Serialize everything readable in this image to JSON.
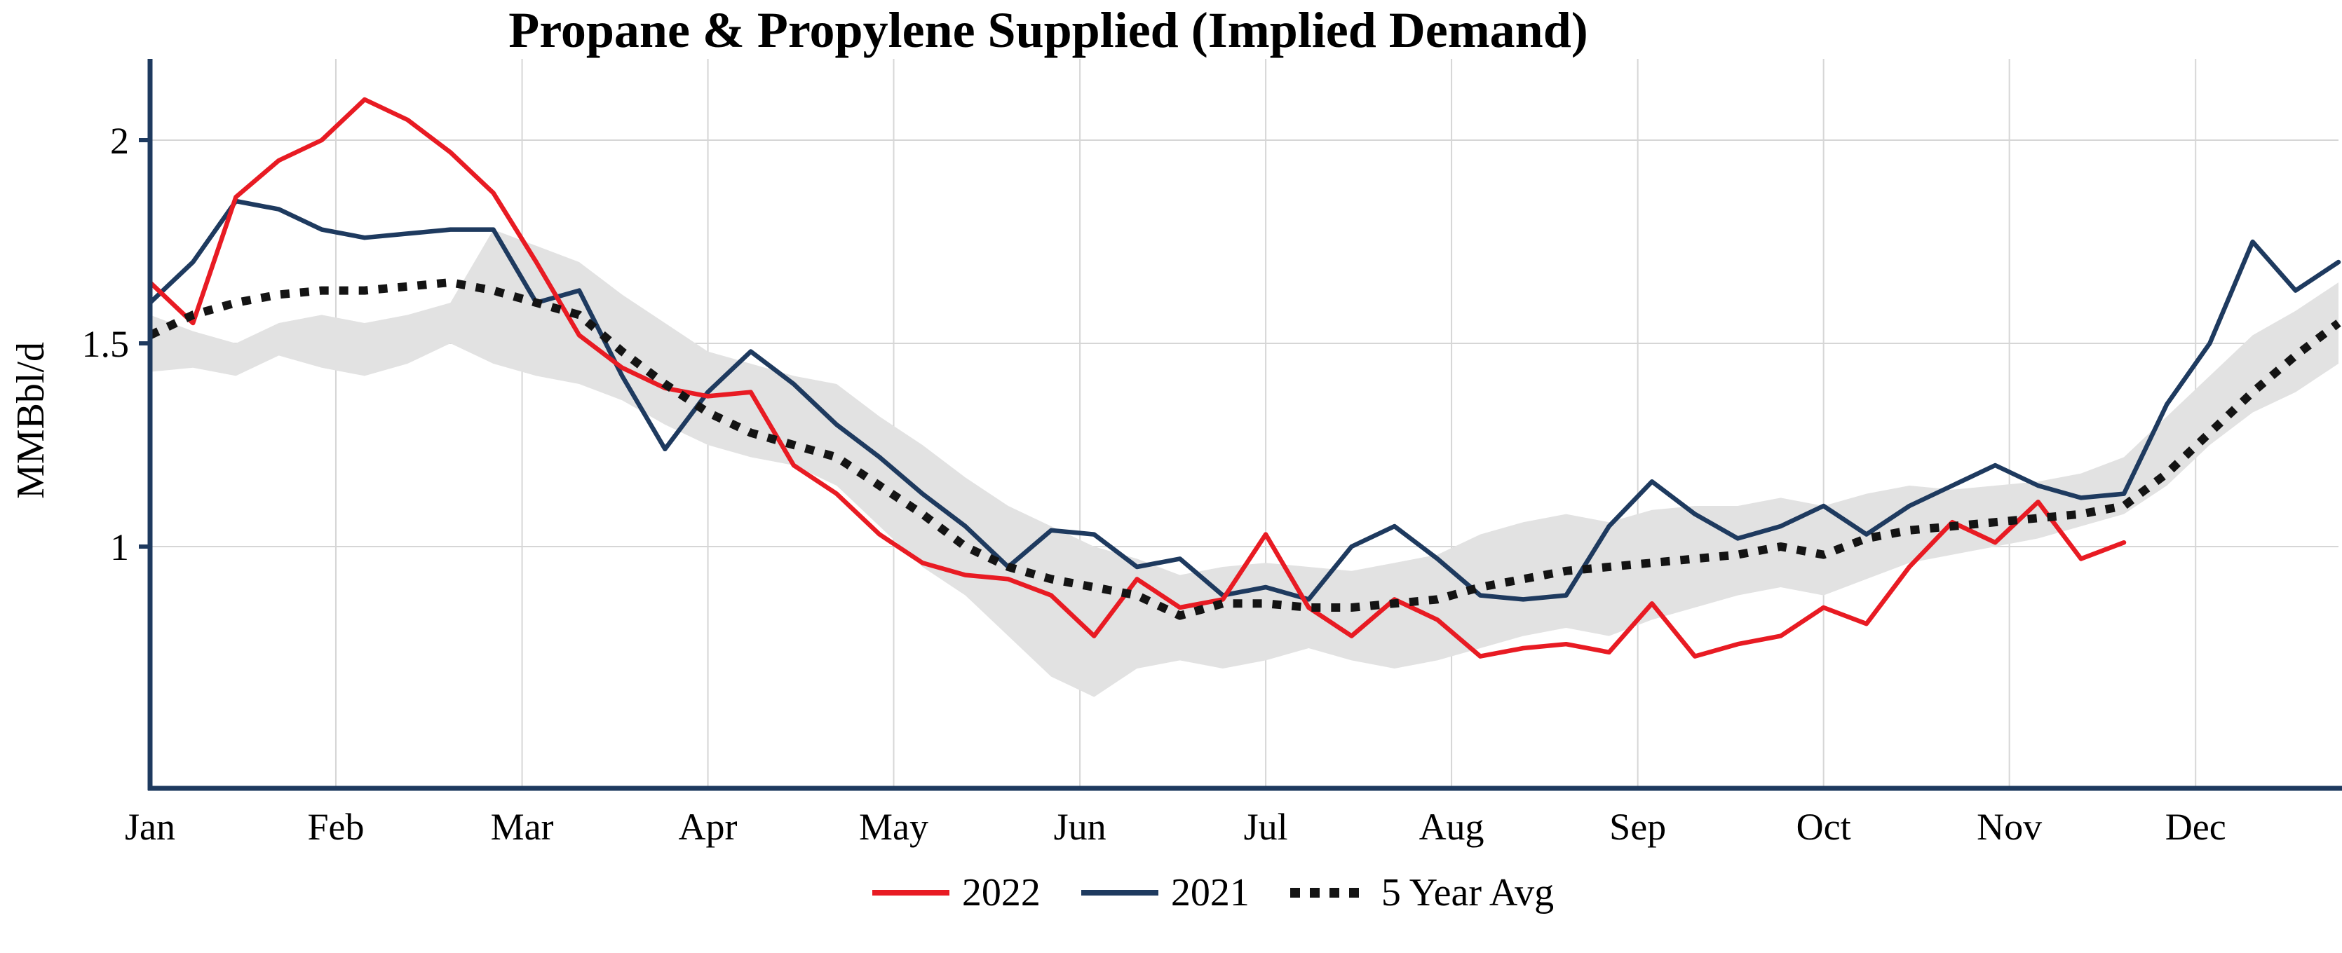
{
  "title": "Propane & Propylene Supplied (Implied Demand)",
  "colors": {
    "axis": "#1e3a5f",
    "grid": "#d6d6d6",
    "band": "#e2e2e2",
    "series_2022": "#e81b23",
    "series_2021": "#1e3a5f",
    "series_avg": "#141414",
    "text": "#000000"
  },
  "chart_data": {
    "type": "line",
    "title": "Propane & Propylene Supplied (Implied Demand)",
    "xlabel": "",
    "ylabel": "MMBbl/d",
    "x_unit": "week of year (Jan–Dec)",
    "months": [
      "Jan",
      "Feb",
      "Mar",
      "Apr",
      "May",
      "Jun",
      "Jul",
      "Aug",
      "Sep",
      "Oct",
      "Nov",
      "Dec"
    ],
    "month_week_positions": [
      0,
      4.33,
      8.67,
      13,
      17.33,
      21.67,
      26,
      30.33,
      34.67,
      39,
      43.33,
      47.67
    ],
    "yticks": [
      1,
      1.5,
      2
    ],
    "ytick_labels": [
      "1",
      "1.5",
      "2"
    ],
    "ylim": [
      0.4,
      2.2
    ],
    "grid": true,
    "legend_position": "bottom-center",
    "series": [
      {
        "name": "2022",
        "style": "solid",
        "color": "#e81b23",
        "start_week": 0,
        "values": [
          1.65,
          1.55,
          1.86,
          1.95,
          2.0,
          2.1,
          2.05,
          1.97,
          1.87,
          1.7,
          1.52,
          1.44,
          1.39,
          1.37,
          1.38,
          1.2,
          1.13,
          1.03,
          0.96,
          0.93,
          0.92,
          0.88,
          0.78,
          0.92,
          0.85,
          0.87,
          1.03,
          0.85,
          0.78,
          0.87,
          0.82,
          0.73,
          0.75,
          0.76,
          0.74,
          0.86,
          0.73,
          0.76,
          0.78,
          0.85,
          0.81,
          0.95,
          1.06,
          1.01,
          1.11,
          0.97,
          1.01
        ]
      },
      {
        "name": "2021",
        "style": "solid",
        "color": "#1e3a5f",
        "start_week": 0,
        "values": [
          1.6,
          1.7,
          1.85,
          1.83,
          1.78,
          1.76,
          1.77,
          1.78,
          1.78,
          1.6,
          1.63,
          1.42,
          1.24,
          1.38,
          1.48,
          1.4,
          1.3,
          1.22,
          1.13,
          1.05,
          0.95,
          1.04,
          1.03,
          0.95,
          0.97,
          0.88,
          0.9,
          0.87,
          1.0,
          1.05,
          0.97,
          0.88,
          0.87,
          0.88,
          1.05,
          1.16,
          1.08,
          1.02,
          1.05,
          1.1,
          1.03,
          1.1,
          1.15,
          1.2,
          1.15,
          1.12,
          1.13,
          1.35,
          1.5,
          1.75,
          1.63,
          1.7
        ]
      },
      {
        "name": "5 Year Avg",
        "style": "dotted",
        "color": "#141414",
        "start_week": 0,
        "values": [
          1.52,
          1.57,
          1.6,
          1.62,
          1.63,
          1.63,
          1.64,
          1.65,
          1.63,
          1.6,
          1.57,
          1.48,
          1.4,
          1.33,
          1.28,
          1.25,
          1.22,
          1.15,
          1.08,
          1.0,
          0.95,
          0.92,
          0.9,
          0.88,
          0.83,
          0.86,
          0.86,
          0.85,
          0.85,
          0.86,
          0.87,
          0.9,
          0.92,
          0.94,
          0.95,
          0.96,
          0.97,
          0.98,
          1.0,
          0.98,
          1.02,
          1.04,
          1.05,
          1.06,
          1.07,
          1.08,
          1.1,
          1.18,
          1.28,
          1.38,
          1.47,
          1.55
        ]
      }
    ],
    "band": {
      "name": "5 Year Range",
      "color": "#e2e2e2",
      "start_week": 0,
      "upper": [
        1.57,
        1.53,
        1.5,
        1.55,
        1.57,
        1.55,
        1.57,
        1.6,
        1.78,
        1.74,
        1.7,
        1.62,
        1.55,
        1.48,
        1.45,
        1.42,
        1.4,
        1.32,
        1.25,
        1.17,
        1.1,
        1.05,
        1.0,
        0.97,
        0.93,
        0.95,
        0.96,
        0.95,
        0.94,
        0.96,
        0.98,
        1.03,
        1.06,
        1.08,
        1.06,
        1.09,
        1.1,
        1.1,
        1.12,
        1.1,
        1.13,
        1.15,
        1.14,
        1.15,
        1.16,
        1.18,
        1.22,
        1.32,
        1.42,
        1.52,
        1.58,
        1.65
      ],
      "lower": [
        1.43,
        1.44,
        1.42,
        1.47,
        1.44,
        1.42,
        1.45,
        1.5,
        1.45,
        1.42,
        1.4,
        1.36,
        1.3,
        1.25,
        1.22,
        1.2,
        1.15,
        1.05,
        0.95,
        0.88,
        0.78,
        0.68,
        0.63,
        0.7,
        0.72,
        0.7,
        0.72,
        0.75,
        0.72,
        0.7,
        0.72,
        0.75,
        0.78,
        0.8,
        0.78,
        0.82,
        0.85,
        0.88,
        0.9,
        0.88,
        0.92,
        0.96,
        0.98,
        1.0,
        1.02,
        1.05,
        1.08,
        1.15,
        1.25,
        1.33,
        1.38,
        1.45
      ]
    },
    "legend": [
      "2022",
      "2021",
      "5 Year Avg"
    ]
  }
}
